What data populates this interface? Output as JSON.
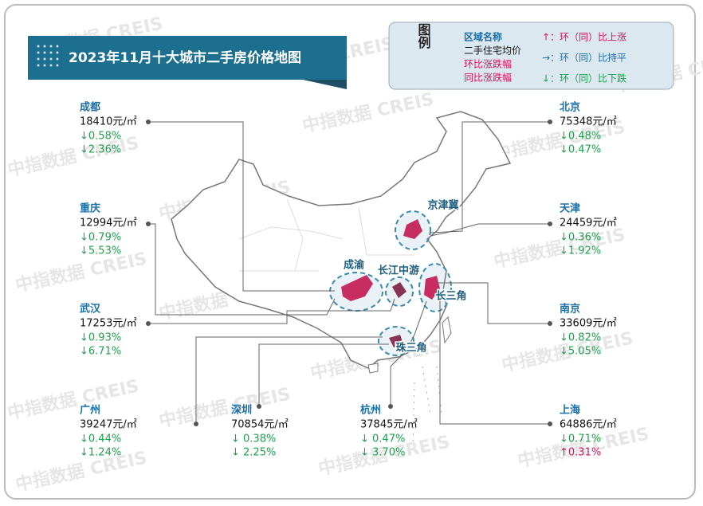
{
  "header": {
    "title": "2023年11月十大城市二手房价格地图"
  },
  "legend": {
    "title": "图例",
    "items_left": [
      "区域名称",
      "二手住宅均价",
      "环比涨跌幅",
      "同比涨跌幅"
    ],
    "items_right": [
      "↑：环（同）比上涨",
      "→：环（同）比持平",
      "↓：环（同）比下跌"
    ]
  },
  "regions": [
    "京津冀",
    "成渝",
    "长江中游",
    "长三角",
    "珠三角"
  ],
  "watermark": "中指数据 CREIS",
  "cities": [
    {
      "name": "成都",
      "price": "18410元/㎡",
      "mom": "↓0.58%",
      "yoy": "↓2.36%"
    },
    {
      "name": "重庆",
      "price": "12994元/㎡",
      "mom": "↓0.79%",
      "yoy": "↓5.53%"
    },
    {
      "name": "武汉",
      "price": "17253元/㎡",
      "mom": "↓0.93%",
      "yoy": "↓6.71%"
    },
    {
      "name": "广州",
      "price": "39247元/㎡",
      "mom": "↓0.44%",
      "yoy": "↓1.24%"
    },
    {
      "name": "深圳",
      "price": "70854元/㎡",
      "mom": "↓ 0.38%",
      "yoy": "↓ 2.25%"
    },
    {
      "name": "杭州",
      "price": "37845元/㎡",
      "mom": "↓ 0.47%",
      "yoy": "↓ 3.70%"
    },
    {
      "name": "北京",
      "price": "75348元/㎡",
      "mom": "↓0.48%",
      "yoy": "↓0.47%"
    },
    {
      "name": "天津",
      "price": "24459元/㎡",
      "mom": "↓0.36%",
      "yoy": "↓1.92%"
    },
    {
      "name": "南京",
      "price": "33609元/㎡",
      "mom": "↓0.82%",
      "yoy": "↓5.05%"
    },
    {
      "name": "上海",
      "price": "64886元/㎡",
      "mom": "↓0.71%",
      "yoy": "↑0.31%"
    }
  ]
}
